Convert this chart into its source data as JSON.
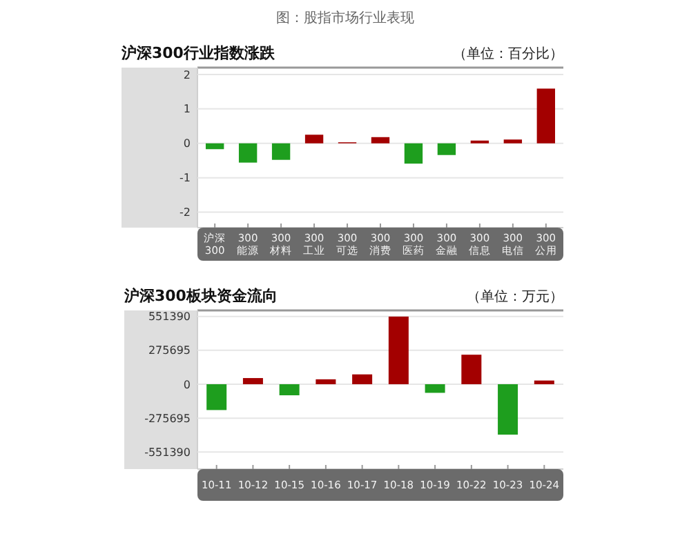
{
  "chart_data": [
    {
      "type": "other",
      "title": "图：股指市场行业表现"
    },
    {
      "type": "bar",
      "title": "沪深300行业指数涨跌",
      "ylabel": "（单位：百分比）",
      "categories": [
        "沪深 300",
        "300 能源",
        "300 材料",
        "300 工业",
        "300 可选",
        "300 消费",
        "300 医药",
        "300 金融",
        "300 信息",
        "300 电信",
        "300 公用"
      ],
      "values": [
        -0.17,
        -0.56,
        -0.48,
        0.25,
        0.03,
        0.18,
        -0.59,
        -0.34,
        0.08,
        0.11,
        1.59
      ],
      "colors": [
        "#1e9e1e",
        "#1e9e1e",
        "#1e9e1e",
        "#a30000",
        "#a30000",
        "#a30000",
        "#1e9e1e",
        "#1e9e1e",
        "#a30000",
        "#a30000",
        "#a30000"
      ],
      "ylim": [
        -2.45,
        2.2
      ],
      "yticks": [
        -2,
        -1,
        0,
        1,
        2
      ],
      "grid": "y"
    },
    {
      "type": "bar",
      "title": "沪深300板块资金流向",
      "ylabel": "（单位：万元）",
      "categories": [
        "10-11",
        "10-12",
        "10-15",
        "10-16",
        "10-17",
        "10-18",
        "10-19",
        "10-22",
        "10-23",
        "10-24"
      ],
      "values": [
        -210000,
        50000,
        -90000,
        40000,
        80000,
        550000,
        -70000,
        240000,
        -410000,
        30000
      ],
      "colors": [
        "#1e9e1e",
        "#a30000",
        "#1e9e1e",
        "#a30000",
        "#a30000",
        "#a30000",
        "#1e9e1e",
        "#a30000",
        "#1e9e1e",
        "#a30000"
      ],
      "ylim": [
        -690000,
        600000
      ],
      "yticks": [
        -551390,
        -275695,
        0,
        275695,
        551390
      ],
      "grid": "y"
    }
  ]
}
